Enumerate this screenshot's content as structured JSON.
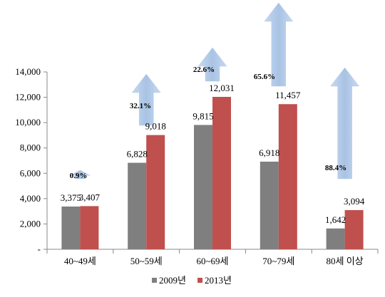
{
  "chart_data": {
    "type": "bar",
    "categories": [
      "40~49세",
      "50~59세",
      "60~69세",
      "70~79세",
      "80세 이상"
    ],
    "series": [
      {
        "name": "2009년",
        "values": [
          3375,
          6828,
          9815,
          6918,
          1642
        ],
        "labels": [
          "3,375",
          "6,828",
          "9,815",
          "6,918",
          "1,642"
        ]
      },
      {
        "name": "2013년",
        "values": [
          3407,
          9018,
          12031,
          11457,
          3094
        ],
        "labels": [
          "3,407",
          "9,018",
          "12,031",
          "11,457",
          "3,094"
        ]
      }
    ],
    "growth_rates": [
      "0.9%",
      "32.1%",
      "22.6%",
      "65.6%",
      "88.4%"
    ],
    "ylim": [
      0,
      14000
    ],
    "yticks": [
      0,
      2000,
      4000,
      6000,
      8000,
      10000,
      12000,
      14000
    ],
    "ytick_labels": [
      "-",
      "2,000",
      "4,000",
      "6,000",
      "8,000",
      "10,000",
      "12,000",
      "14,000"
    ],
    "legend_position": "bottom",
    "grid": false,
    "colors": {
      "series_2009": "#7f7f7f",
      "series_2013": "#c0504d",
      "arrow": "#b9cde5",
      "axis": "#888888"
    }
  }
}
